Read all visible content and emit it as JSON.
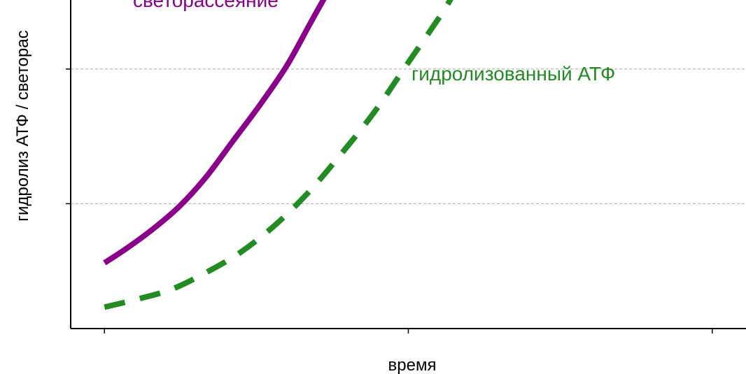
{
  "chart_data": {
    "type": "line",
    "title": "",
    "xlabel": "время",
    "ylabel": "гидролиз АТФ / светорас",
    "grid": "horizontal dashed gray",
    "xlim": [
      0,
      1
    ],
    "ylim": [
      0,
      1
    ],
    "x_ticks": [
      0.05,
      0.5,
      0.95
    ],
    "y_gridlines": [
      0.38,
      0.79
    ],
    "colors": {
      "axis": "#000000",
      "grid": "#aaaaaa"
    },
    "series": [
      {
        "name": "светорассеяние",
        "color": "#8b008b",
        "style": "solid",
        "points": [
          [
            0.05,
            0.2
          ],
          [
            0.08,
            0.24
          ],
          [
            0.12,
            0.3
          ],
          [
            0.16,
            0.37
          ],
          [
            0.2,
            0.46
          ],
          [
            0.24,
            0.57
          ],
          [
            0.28,
            0.68
          ],
          [
            0.32,
            0.8
          ],
          [
            0.355,
            0.93
          ],
          [
            0.385,
            1.04
          ]
        ]
      },
      {
        "name": "гидролизованный АТФ",
        "color": "#228b22",
        "style": "dashed",
        "points": [
          [
            0.05,
            0.065
          ],
          [
            0.1,
            0.09
          ],
          [
            0.15,
            0.12
          ],
          [
            0.2,
            0.17
          ],
          [
            0.25,
            0.23
          ],
          [
            0.3,
            0.31
          ],
          [
            0.35,
            0.41
          ],
          [
            0.4,
            0.53
          ],
          [
            0.45,
            0.66
          ],
          [
            0.5,
            0.81
          ],
          [
            0.55,
            0.96
          ],
          [
            0.57,
            1.03
          ]
        ]
      }
    ]
  }
}
